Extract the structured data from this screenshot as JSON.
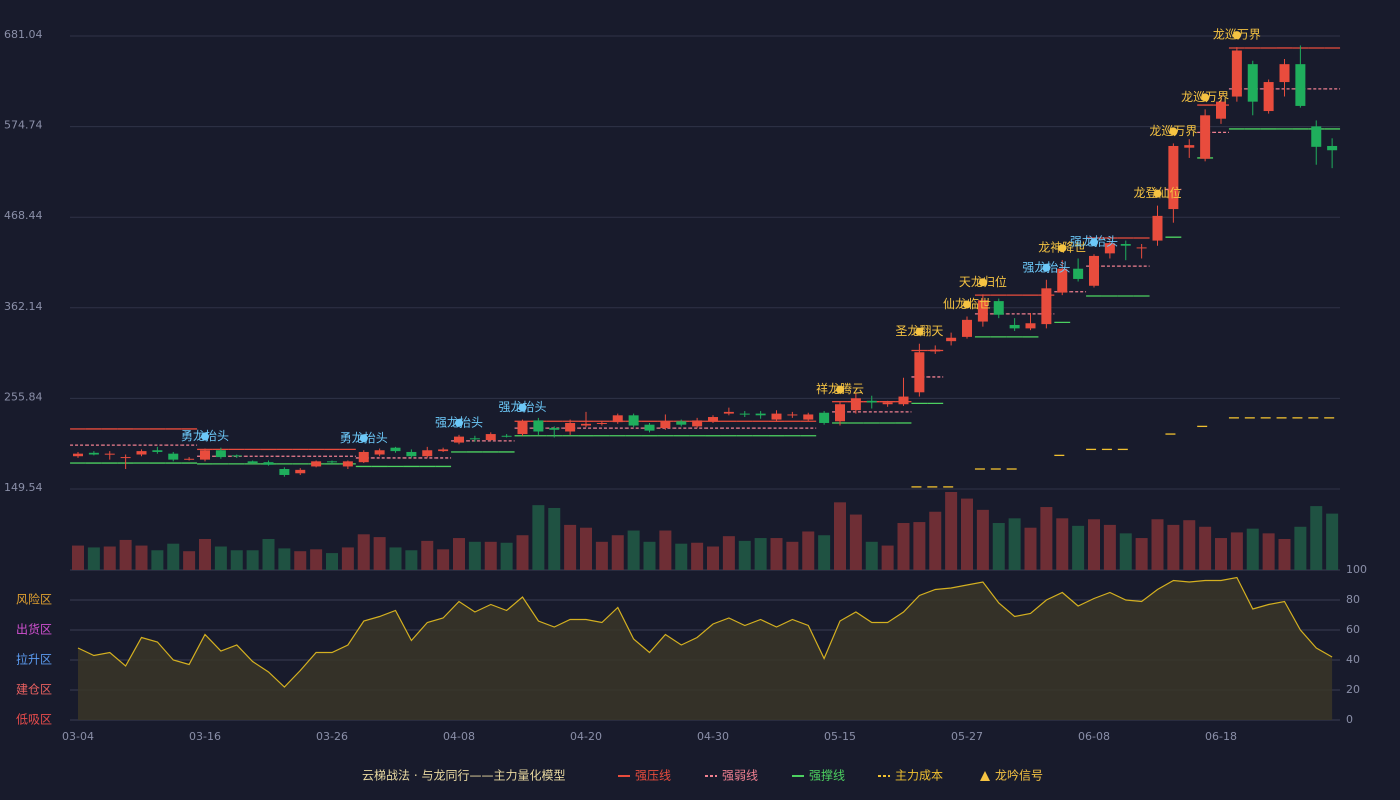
{
  "chart_data": {
    "type": "candlestick",
    "categories": [
      "03-04",
      null,
      null,
      null,
      null,
      null,
      null,
      null,
      "03-16",
      null,
      null,
      null,
      null,
      null,
      null,
      null,
      "03-26",
      null,
      null,
      null,
      null,
      null,
      null,
      null,
      "04-08",
      null,
      null,
      null,
      null,
      null,
      null,
      null,
      "04-20",
      null,
      null,
      null,
      null,
      null,
      null,
      null,
      "04-30",
      null,
      null,
      null,
      null,
      null,
      null,
      null,
      "05-15",
      null,
      null,
      null,
      null,
      null,
      null,
      null,
      "05-27",
      null,
      null,
      null,
      null,
      null,
      null,
      null,
      "06-08",
      null,
      null,
      null,
      null,
      null,
      null,
      null,
      "06-18",
      null,
      null,
      null,
      null,
      null,
      null,
      null
    ],
    "open": [
      188,
      192,
      190,
      186,
      190,
      195,
      191,
      185,
      184,
      195,
      189,
      182,
      181,
      173,
      168,
      176,
      182,
      176,
      181,
      190,
      198,
      193,
      188,
      194,
      204,
      209,
      207,
      212,
      214,
      230,
      221,
      217,
      224,
      226,
      228,
      236,
      225,
      221,
      229,
      223,
      229,
      238,
      238,
      238,
      231,
      236,
      231,
      239,
      229,
      242,
      253,
      249,
      249,
      263,
      311,
      323,
      328,
      346,
      370,
      342,
      338,
      343,
      380,
      408,
      388,
      426,
      437,
      432,
      441,
      478,
      550,
      537,
      584,
      610,
      648,
      593,
      627,
      648,
      575,
      552
    ],
    "close": [
      191,
      190,
      191,
      187,
      194,
      193,
      184,
      185,
      195,
      187,
      188,
      180,
      178,
      166,
      172,
      182,
      181,
      182,
      193,
      195,
      194,
      188,
      195,
      196,
      211,
      208,
      214,
      211,
      229,
      217,
      219,
      227,
      226,
      227,
      236,
      224,
      218,
      229,
      225,
      230,
      234,
      240,
      237,
      236,
      238,
      237,
      237,
      227,
      249,
      256,
      251,
      251,
      258,
      310,
      313,
      327,
      348,
      371,
      354,
      338,
      344,
      385,
      408,
      396,
      423,
      438,
      435,
      433,
      470,
      552,
      553,
      588,
      604,
      664,
      604,
      627,
      648,
      599,
      551,
      547
    ],
    "high": [
      193,
      194,
      194,
      190,
      196,
      199,
      193,
      187,
      197,
      198,
      190,
      183,
      183,
      175,
      174,
      183,
      183,
      183,
      195,
      197,
      199,
      196,
      199,
      198,
      213,
      212,
      216,
      214,
      231,
      233,
      223,
      231,
      240,
      229,
      238,
      238,
      227,
      237,
      231,
      233,
      236,
      245,
      241,
      241,
      242,
      240,
      239,
      241,
      252,
      262,
      259,
      253,
      280,
      320,
      318,
      333,
      352,
      378,
      373,
      350,
      356,
      395,
      418,
      420,
      425,
      441,
      441,
      437,
      482,
      555,
      560,
      595,
      612,
      668,
      652,
      630,
      654,
      670,
      582,
      561
    ],
    "low": [
      186,
      189,
      184,
      173,
      188,
      191,
      182,
      183,
      182,
      185,
      186,
      179,
      177,
      164,
      166,
      175,
      179,
      173,
      180,
      188,
      192,
      186,
      186,
      193,
      202,
      205,
      206,
      210,
      212,
      213,
      210,
      213,
      222,
      224,
      226,
      222,
      216,
      219,
      223,
      221,
      227,
      236,
      234,
      232,
      229,
      233,
      229,
      225,
      224,
      238,
      244,
      246,
      247,
      258,
      308,
      318,
      326,
      340,
      350,
      335,
      336,
      338,
      377,
      393,
      386,
      420,
      418,
      420,
      435,
      462,
      538,
      534,
      578,
      604,
      588,
      590,
      610,
      597,
      530,
      526
    ],
    "volume": [
      26,
      24,
      25,
      32,
      26,
      21,
      28,
      20,
      33,
      25,
      21,
      21,
      33,
      23,
      20,
      22,
      18,
      24,
      38,
      35,
      24,
      21,
      31,
      22,
      34,
      30,
      30,
      29,
      37,
      69,
      66,
      48,
      45,
      30,
      37,
      42,
      30,
      42,
      28,
      29,
      25,
      36,
      31,
      34,
      34,
      30,
      41,
      37,
      72,
      59,
      30,
      26,
      50,
      51,
      62,
      83,
      76,
      64,
      50,
      55,
      45,
      67,
      55,
      47,
      54,
      48,
      39,
      34,
      54,
      48,
      53,
      46,
      34,
      40,
      44,
      39,
      33,
      46,
      68,
      60
    ],
    "oscillator": [
      48,
      43,
      45,
      36,
      55,
      52,
      40,
      37,
      57,
      46,
      50,
      39,
      32,
      22,
      33,
      45,
      45,
      50,
      66,
      69,
      73,
      53,
      65,
      68,
      79,
      72,
      77,
      73,
      82,
      66,
      62,
      67,
      67,
      65,
      75,
      54,
      45,
      57,
      50,
      55,
      64,
      68,
      63,
      67,
      62,
      67,
      63,
      41,
      66,
      72,
      65,
      65,
      72,
      83,
      87,
      88,
      90,
      92,
      78,
      69,
      71,
      80,
      85,
      76,
      81,
      85,
      80,
      79,
      87,
      93,
      92,
      93,
      93,
      95,
      74,
      77,
      79,
      60,
      48,
      42
    ],
    "ylim": [
      149.54,
      681.04
    ],
    "yticks": [
      149.54,
      255.84,
      362.14,
      468.44,
      574.74,
      681.04
    ],
    "osc_ylim": [
      0,
      100
    ],
    "osc_yticks": [
      0,
      20,
      40,
      60,
      80,
      100
    ],
    "osc_tick_colors": [
      "#e84c4c",
      "#e86060",
      "#7aa8e0",
      "#d050d0",
      "#e0b040",
      "#4cd060"
    ],
    "osc_zones": [
      {
        "value": 80,
        "label": "风险区",
        "color": "#e0a030"
      },
      {
        "value": 60,
        "label": "出货区",
        "color": "#d050d0"
      },
      {
        "value": 40,
        "label": "拉升区",
        "color": "#5b9bf0"
      },
      {
        "value": 20,
        "label": "建仓区",
        "color": "#e86060"
      },
      {
        "value": 0,
        "label": "低吸区",
        "color": "#e84c4c"
      }
    ],
    "colors": {
      "up": "#e84c3d",
      "down": "#1fae5c",
      "vol_up": "#6e2e35",
      "vol_down": "#1f5242",
      "osc_line": "#d4b020",
      "osc_fill": "#3a3528"
    },
    "grid": true,
    "levels": [
      {
        "name": "强压线",
        "color": "#e84c3d",
        "dash": "none",
        "values": [
          220,
          220,
          220,
          220,
          220,
          220,
          220,
          220,
          196,
          196,
          196,
          196,
          196,
          196,
          196,
          196,
          196,
          196,
          null,
          null,
          null,
          null,
          null,
          null,
          null,
          null,
          null,
          null,
          229,
          229,
          229,
          229,
          229,
          229,
          229,
          229,
          229,
          229,
          229,
          229,
          229,
          229,
          229,
          229,
          229,
          229,
          229,
          null,
          252,
          252,
          252,
          252,
          252,
          312,
          312,
          null,
          null,
          377,
          377,
          377,
          377,
          377,
          null,
          null,
          444,
          444,
          444,
          444,
          null,
          null,
          null,
          600,
          600,
          667,
          667,
          667,
          667,
          667,
          667,
          667
        ]
      },
      {
        "name": "强弱线",
        "color": "#f08090",
        "dash": "3 2",
        "values": [
          201,
          201,
          201,
          201,
          201,
          201,
          201,
          201,
          188,
          188,
          188,
          188,
          188,
          188,
          188,
          188,
          188,
          188,
          186,
          186,
          186,
          186,
          186,
          186,
          206,
          206,
          206,
          206,
          221,
          221,
          221,
          221,
          221,
          221,
          221,
          221,
          221,
          221,
          221,
          221,
          221,
          221,
          221,
          221,
          221,
          221,
          221,
          null,
          240,
          240,
          240,
          240,
          240,
          281,
          281,
          null,
          null,
          355,
          355,
          355,
          355,
          355,
          381,
          381,
          411,
          411,
          411,
          411,
          null,
          501,
          null,
          568,
          568,
          619,
          619,
          619,
          619,
          619,
          619,
          619
        ]
      },
      {
        "name": "强撑线",
        "color": "#4cd060",
        "dash": "none",
        "values": [
          180,
          180,
          180,
          180,
          180,
          180,
          180,
          180,
          179,
          179,
          179,
          179,
          179,
          179,
          179,
          179,
          179,
          179,
          176,
          176,
          176,
          176,
          176,
          176,
          193,
          193,
          193,
          193,
          212,
          212,
          212,
          212,
          212,
          212,
          212,
          212,
          212,
          212,
          212,
          212,
          212,
          212,
          212,
          212,
          212,
          212,
          212,
          null,
          227,
          227,
          227,
          227,
          227,
          250,
          250,
          null,
          null,
          328,
          328,
          328,
          328,
          null,
          345,
          null,
          376,
          376,
          376,
          376,
          null,
          445,
          null,
          538,
          null,
          572,
          572,
          572,
          572,
          572,
          572,
          572
        ]
      },
      {
        "name": "主力成本",
        "color": "#f0c030",
        "dash": "10 6",
        "values": [
          null,
          null,
          null,
          null,
          null,
          null,
          null,
          null,
          null,
          null,
          null,
          null,
          null,
          null,
          null,
          null,
          null,
          null,
          null,
          null,
          null,
          null,
          null,
          null,
          null,
          null,
          null,
          null,
          null,
          null,
          null,
          null,
          null,
          null,
          null,
          null,
          null,
          null,
          null,
          null,
          null,
          null,
          null,
          null,
          null,
          null,
          null,
          null,
          null,
          null,
          null,
          null,
          null,
          152,
          152,
          152,
          null,
          173,
          173,
          173,
          null,
          null,
          189,
          null,
          196,
          196,
          196,
          null,
          null,
          214,
          null,
          223,
          null,
          233,
          233,
          233,
          233,
          233,
          233,
          233
        ]
      }
    ],
    "signals": [
      null,
      null,
      null,
      null,
      null,
      null,
      null,
      null,
      {
        "label": "勇龙抬头",
        "color": "#6cc8f8"
      },
      null,
      null,
      null,
      null,
      null,
      null,
      null,
      null,
      null,
      {
        "label": "勇龙抬头",
        "color": "#6cc8f8"
      },
      null,
      null,
      null,
      null,
      null,
      {
        "label": "强龙抬头",
        "color": "#6cc8f8"
      },
      null,
      null,
      null,
      {
        "label": "强龙抬头",
        "color": "#6cc8f8"
      },
      null,
      null,
      null,
      null,
      null,
      null,
      null,
      null,
      null,
      null,
      null,
      null,
      null,
      null,
      null,
      null,
      null,
      null,
      null,
      {
        "label": "祥龙腾云",
        "color": "#f5c342"
      },
      null,
      null,
      null,
      null,
      {
        "label": "圣龙翻天",
        "color": "#f5c342"
      },
      null,
      null,
      {
        "label": "仙龙临世",
        "color": "#f5c342"
      },
      {
        "label": "天龙归位",
        "color": "#f5c342"
      },
      null,
      null,
      null,
      {
        "label": "强龙抬头",
        "color": "#6cc8f8"
      },
      {
        "label": "龙神降世",
        "color": "#f5c342"
      },
      null,
      {
        "label": "强龙抬头",
        "color": "#6cc8f8"
      },
      null,
      null,
      null,
      {
        "label": "龙登仙位",
        "color": "#f5c342"
      },
      {
        "label": "龙巡万界",
        "color": "#f5c342"
      },
      null,
      {
        "label": "龙巡万界",
        "color": "#f5c342"
      },
      null,
      {
        "label": "龙巡万界",
        "color": "#f5c342"
      },
      null,
      null,
      null,
      null,
      null,
      null
    ],
    "legend_title": "云梯战法 · 与龙同行——主力量化模型",
    "signal_legend": "龙吟信号",
    "signal_legend_color": "#f5c342"
  }
}
